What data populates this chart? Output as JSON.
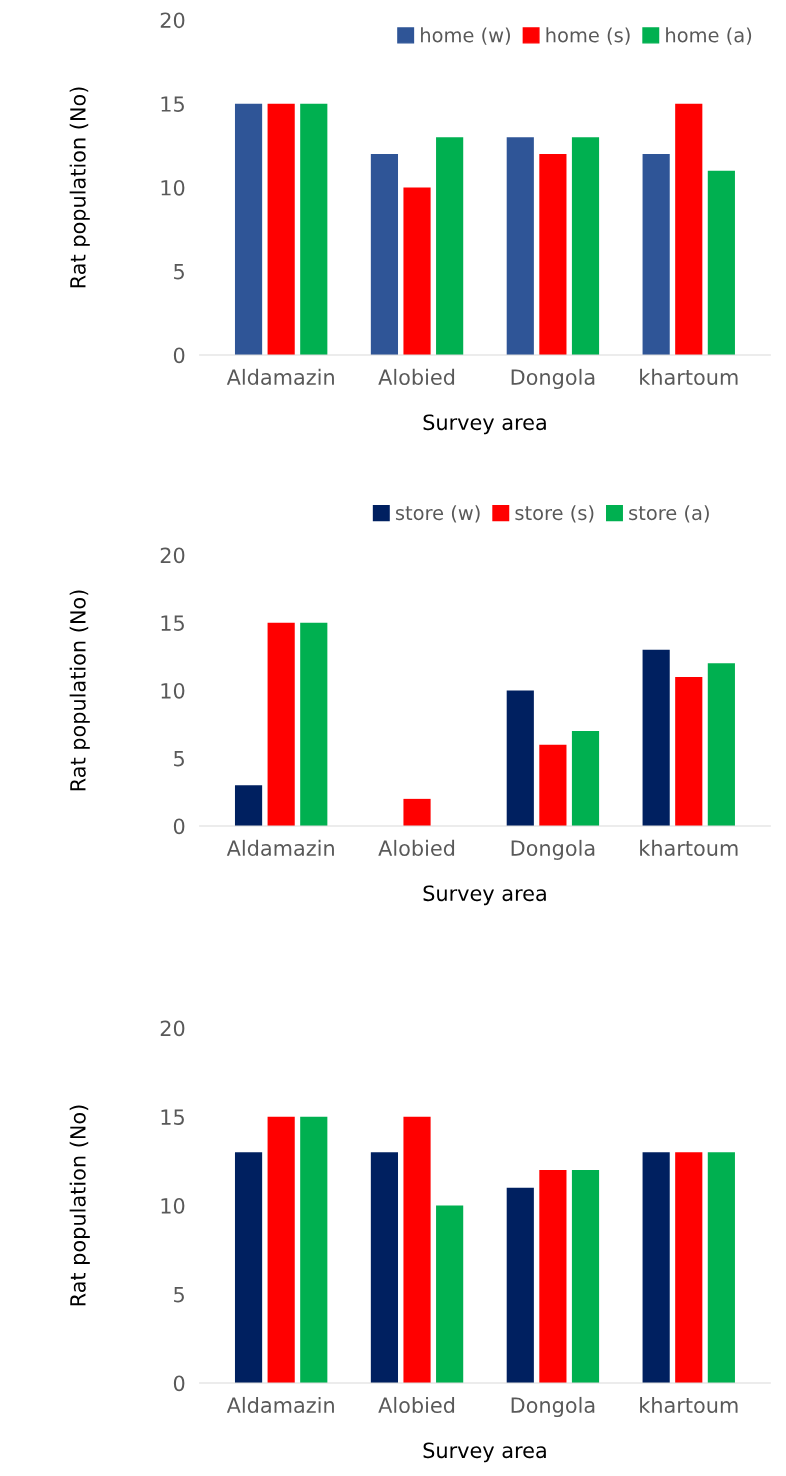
{
  "chart_data": [
    {
      "type": "bar",
      "xlabel": "Survey area",
      "ylabel": "Rat population (No)",
      "categories": [
        "Aldamazin",
        "Alobied",
        "Dongola",
        "khartoum"
      ],
      "ylim": [
        0,
        20
      ],
      "yticks": [
        0,
        5,
        10,
        15,
        20
      ],
      "grid": false,
      "legend": "top right",
      "series": [
        {
          "name": "home (w)",
          "color": "#2f5597",
          "values": [
            15,
            12,
            13,
            12
          ]
        },
        {
          "name": "home (s)",
          "color": "#ff0000",
          "values": [
            15,
            10,
            12,
            15
          ]
        },
        {
          "name": "home (a)",
          "color": "#00b050",
          "values": [
            15,
            13,
            13,
            11
          ]
        }
      ]
    },
    {
      "type": "bar",
      "xlabel": "Survey area",
      "ylabel": "Rat population (No)",
      "categories": [
        "Aldamazin",
        "Alobied",
        "Dongola",
        "khartoum"
      ],
      "ylim": [
        0,
        20
      ],
      "yticks": [
        0,
        5,
        10,
        15,
        20
      ],
      "grid": false,
      "legend": "top",
      "series": [
        {
          "name": "store (w)",
          "color": "#002060",
          "values": [
            3,
            0,
            10,
            13
          ]
        },
        {
          "name": "store (s)",
          "color": "#ff0000",
          "values": [
            15,
            2,
            6,
            11
          ]
        },
        {
          "name": "store (a)",
          "color": "#00b050",
          "values": [
            15,
            0,
            7,
            12
          ]
        }
      ]
    },
    {
      "type": "bar",
      "xlabel": "Survey area",
      "ylabel": "Rat population (No)",
      "categories": [
        "Aldamazin",
        "Alobied",
        "Dongola",
        "khartoum"
      ],
      "ylim": [
        0,
        20
      ],
      "yticks": [
        0,
        5,
        10,
        15,
        20
      ],
      "grid": false,
      "series": [
        {
          "color": "#002060",
          "values": [
            13,
            13,
            11,
            13
          ]
        },
        {
          "color": "#ff0000",
          "values": [
            15,
            15,
            12,
            13
          ]
        },
        {
          "color": "#00b050",
          "values": [
            15,
            10,
            12,
            13
          ]
        }
      ]
    }
  ]
}
